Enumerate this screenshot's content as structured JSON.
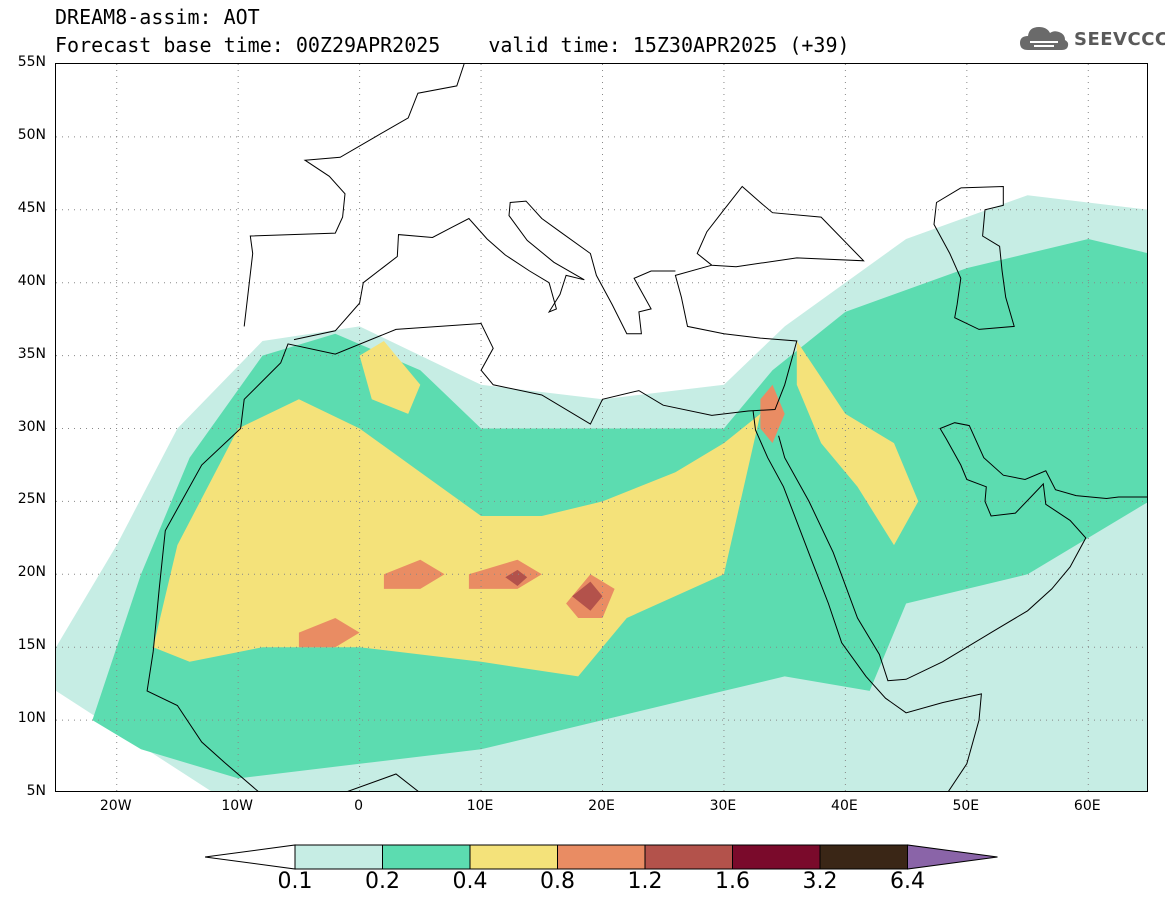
{
  "title": {
    "line1": "DREAM8-assim: AOT",
    "base_time": "Forecast base time: 00Z29APR2025",
    "valid_time": "valid time: 15Z30APR2025 (+39)"
  },
  "logo": {
    "icon": "cloud-icon",
    "text": "SEEVCCC"
  },
  "map": {
    "lat_labels": [
      "55N",
      "50N",
      "45N",
      "40N",
      "35N",
      "30N",
      "25N",
      "20N",
      "15N",
      "10N",
      "5N"
    ],
    "lon_labels": [
      "20W",
      "10W",
      "0",
      "10E",
      "20E",
      "30E",
      "40E",
      "50E",
      "60E"
    ],
    "lat_range": [
      5,
      55
    ],
    "lon_range": [
      -25,
      65
    ],
    "grid": "dotted"
  },
  "colorbar": {
    "labels": [
      "0.1",
      "0.2",
      "0.4",
      "0.8",
      "1.2",
      "1.6",
      "3.2",
      "6.4"
    ],
    "colors": [
      "#ffffff",
      "#c6ede4",
      "#5cdcb0",
      "#f4e27a",
      "#e98c63",
      "#b3524b",
      "#7a0a2b",
      "#3a2616",
      "#8a64a8"
    ]
  },
  "chart_data": {
    "type": "heatmap",
    "title": "DREAM8-assim: AOT",
    "variable": "AOT",
    "levels": [
      0.1,
      0.2,
      0.4,
      0.8,
      1.2,
      1.6,
      3.2,
      6.4
    ],
    "xlabel": "",
    "ylabel": "",
    "x_ticks": [
      "20W",
      "10W",
      "0",
      "10E",
      "20E",
      "30E",
      "40E",
      "50E",
      "60E"
    ],
    "y_ticks": [
      "55N",
      "50N",
      "45N",
      "40N",
      "35N",
      "30N",
      "25N",
      "20N",
      "15N",
      "10N",
      "5N"
    ],
    "xlim": [
      -25,
      65
    ],
    "ylim": [
      5,
      55
    ],
    "regions": [
      {
        "level": 0.1,
        "points": [
          [
            -25,
            15
          ],
          [
            -20,
            22
          ],
          [
            -15,
            30
          ],
          [
            -8,
            36
          ],
          [
            0,
            37
          ],
          [
            10,
            33
          ],
          [
            20,
            32
          ],
          [
            30,
            33
          ],
          [
            35,
            37
          ],
          [
            45,
            43
          ],
          [
            55,
            46
          ],
          [
            65,
            45
          ],
          [
            65,
            5
          ],
          [
            -12,
            5
          ],
          [
            -25,
            12
          ]
        ]
      },
      {
        "level": 0.2,
        "points": [
          [
            -22,
            10
          ],
          [
            -18,
            20
          ],
          [
            -14,
            28
          ],
          [
            -8,
            35
          ],
          [
            -2,
            36.5
          ],
          [
            5,
            34
          ],
          [
            10,
            30
          ],
          [
            20,
            30
          ],
          [
            30,
            30
          ],
          [
            34,
            34
          ],
          [
            40,
            38
          ],
          [
            50,
            41
          ],
          [
            60,
            43
          ],
          [
            65,
            42
          ],
          [
            65,
            25
          ],
          [
            55,
            20
          ],
          [
            45,
            18
          ],
          [
            42,
            12
          ],
          [
            35,
            13
          ],
          [
            30,
            12
          ],
          [
            20,
            10
          ],
          [
            10,
            8
          ],
          [
            0,
            7
          ],
          [
            -10,
            6
          ],
          [
            -18,
            8
          ]
        ]
      },
      {
        "level": 0.4,
        "points": [
          [
            -17,
            15
          ],
          [
            -15,
            22
          ],
          [
            -10,
            30
          ],
          [
            -5,
            32
          ],
          [
            0,
            30
          ],
          [
            5,
            27
          ],
          [
            10,
            24
          ],
          [
            15,
            24
          ],
          [
            20,
            25
          ],
          [
            26,
            27
          ],
          [
            30,
            29
          ],
          [
            33,
            31
          ],
          [
            30,
            20
          ],
          [
            22,
            17
          ],
          [
            18,
            13
          ],
          [
            10,
            14
          ],
          [
            0,
            15
          ],
          [
            -8,
            15
          ],
          [
            -14,
            14
          ]
        ]
      },
      {
        "level": 0.4,
        "points": [
          [
            36,
            36
          ],
          [
            40,
            31
          ],
          [
            44,
            29
          ],
          [
            46,
            25
          ],
          [
            44,
            22
          ],
          [
            41,
            26
          ],
          [
            38,
            29
          ],
          [
            36,
            33
          ]
        ]
      },
      {
        "level": 0.4,
        "points": [
          [
            0,
            35
          ],
          [
            2,
            36
          ],
          [
            5,
            33
          ],
          [
            4,
            31
          ],
          [
            1,
            32
          ]
        ]
      },
      {
        "level": 0.8,
        "points": [
          [
            -5,
            16
          ],
          [
            -2,
            17
          ],
          [
            0,
            16
          ],
          [
            -2,
            15
          ],
          [
            -5,
            15
          ]
        ]
      },
      {
        "level": 0.8,
        "points": [
          [
            2,
            20
          ],
          [
            5,
            21
          ],
          [
            7,
            20
          ],
          [
            5,
            19
          ],
          [
            2,
            19
          ]
        ]
      },
      {
        "level": 0.8,
        "points": [
          [
            9,
            20
          ],
          [
            13,
            21
          ],
          [
            15,
            20
          ],
          [
            13,
            19
          ],
          [
            9,
            19
          ]
        ]
      },
      {
        "level": 0.8,
        "points": [
          [
            17,
            18
          ],
          [
            19,
            20
          ],
          [
            21,
            19
          ],
          [
            20,
            17
          ],
          [
            18,
            17
          ]
        ]
      },
      {
        "level": 0.8,
        "points": [
          [
            33,
            32
          ],
          [
            34,
            33
          ],
          [
            35,
            31
          ],
          [
            34,
            29
          ],
          [
            33,
            30
          ]
        ]
      },
      {
        "level": 1.2,
        "points": [
          [
            17.5,
            18.5
          ],
          [
            19,
            19.5
          ],
          [
            20,
            18.5
          ],
          [
            19,
            17.5
          ]
        ]
      },
      {
        "level": 1.2,
        "points": [
          [
            12,
            19.8
          ],
          [
            13,
            20.3
          ],
          [
            13.8,
            19.8
          ],
          [
            13,
            19.2
          ]
        ]
      }
    ]
  }
}
